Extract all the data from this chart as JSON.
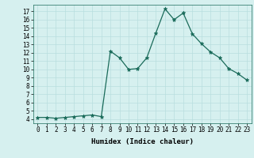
{
  "x": [
    0,
    1,
    2,
    3,
    4,
    5,
    6,
    7,
    8,
    9,
    10,
    11,
    12,
    13,
    14,
    15,
    16,
    17,
    18,
    19,
    20,
    21,
    22,
    23
  ],
  "y": [
    4.2,
    4.2,
    4.1,
    4.2,
    4.3,
    4.4,
    4.5,
    4.3,
    12.2,
    11.4,
    10.0,
    10.1,
    11.4,
    14.4,
    17.3,
    16.0,
    16.8,
    14.3,
    13.1,
    12.1,
    11.4,
    10.1,
    9.5,
    8.7
  ],
  "title": "",
  "xlabel": "Humidex (Indice chaleur)",
  "ylabel": "",
  "xlim": [
    -0.5,
    23.5
  ],
  "ylim": [
    3.5,
    17.8
  ],
  "yticks": [
    4,
    5,
    6,
    7,
    8,
    9,
    10,
    11,
    12,
    13,
    14,
    15,
    16,
    17
  ],
  "xticks": [
    0,
    1,
    2,
    3,
    4,
    5,
    6,
    7,
    8,
    9,
    10,
    11,
    12,
    13,
    14,
    15,
    16,
    17,
    18,
    19,
    20,
    21,
    22,
    23
  ],
  "line_color": "#1a6b5a",
  "marker": "*",
  "bg_color": "#d6f0ef",
  "grid_color": "#b8dede",
  "label_fontsize": 6.5,
  "tick_fontsize": 5.5
}
